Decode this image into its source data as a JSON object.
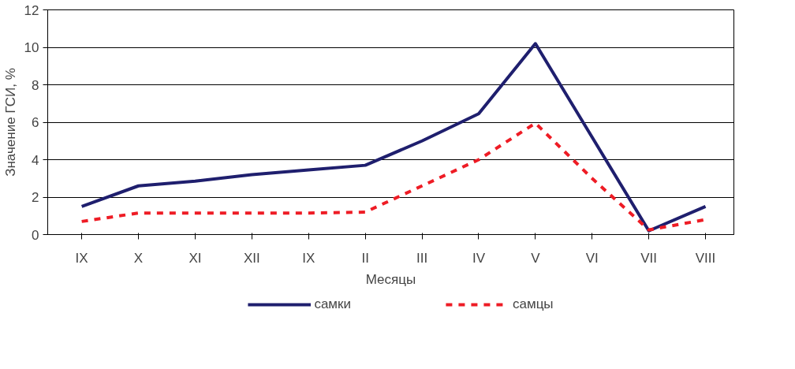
{
  "chart_data": {
    "type": "line",
    "xlabel": "Месяцы",
    "ylabel": "Значение ГСИ, %",
    "categories": [
      "IX",
      "X",
      "XI",
      "XII",
      "IX",
      "II",
      "III",
      "IV",
      "V",
      "VI",
      "VII",
      "VIII"
    ],
    "series": [
      {
        "name": "самки",
        "color": "#1f1f6e",
        "line_style": "solid",
        "values": [
          1.5,
          2.6,
          2.85,
          3.2,
          3.45,
          3.7,
          5.0,
          6.45,
          10.2,
          5.2,
          0.2,
          1.5
        ]
      },
      {
        "name": "самцы",
        "color": "#ee1c25",
        "line_style": "dashed",
        "values": [
          0.7,
          1.15,
          1.15,
          1.15,
          1.15,
          1.2,
          2.6,
          4.0,
          5.95,
          3.0,
          0.25,
          0.8
        ]
      }
    ],
    "ylim": [
      0,
      12
    ],
    "yticks": [
      0,
      2,
      4,
      6,
      8,
      10,
      12
    ],
    "grid": "y",
    "legend": "bottom",
    "marker": "none"
  }
}
